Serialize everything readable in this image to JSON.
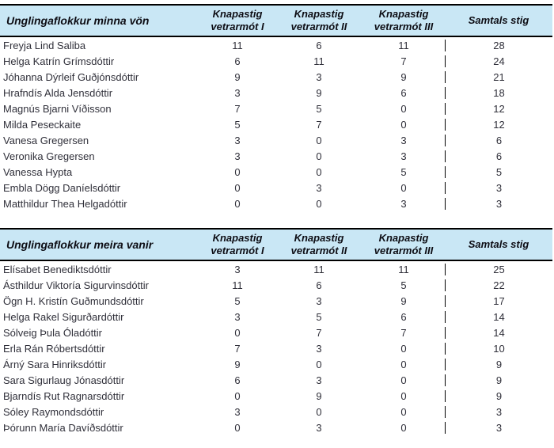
{
  "colors": {
    "header_bg": "#c9e7f5",
    "header_text": "#0d0d14",
    "body_text": "#30303a",
    "border": "#000000"
  },
  "tables": [
    {
      "title": "Unglingaflokkur minna vön",
      "columns": [
        {
          "line1": "Knapastig",
          "line2": "vetrarmót I"
        },
        {
          "line1": "Knapastig",
          "line2": "vetrarmót II"
        },
        {
          "line1": "Knapastig",
          "line2": "vetrarmót III"
        },
        {
          "line1": "Samtals stig",
          "line2": ""
        }
      ],
      "rows": [
        {
          "name": "Freyja Lind Saliba",
          "scores": [
            11,
            6,
            11
          ],
          "total": 28
        },
        {
          "name": "Helga Katrín Grímsdóttir",
          "scores": [
            6,
            11,
            7
          ],
          "total": 24
        },
        {
          "name": "Jóhanna Dýrleif Guðjónsdóttir",
          "scores": [
            9,
            3,
            9
          ],
          "total": 21
        },
        {
          "name": "Hrafndís Alda Jensdóttir",
          "scores": [
            3,
            9,
            6
          ],
          "total": 18
        },
        {
          "name": "Magnús Bjarni Víðisson",
          "scores": [
            7,
            5,
            0
          ],
          "total": 12
        },
        {
          "name": "Milda Peseckaite",
          "scores": [
            5,
            7,
            0
          ],
          "total": 12
        },
        {
          "name": "Vanesa Gregersen",
          "scores": [
            3,
            0,
            3
          ],
          "total": 6
        },
        {
          "name": "Veronika Gregersen",
          "scores": [
            3,
            0,
            3
          ],
          "total": 6
        },
        {
          "name": "Vanessa Hypta",
          "scores": [
            0,
            0,
            5
          ],
          "total": 5
        },
        {
          "name": "Embla Dögg Daníelsdóttir",
          "scores": [
            0,
            3,
            0
          ],
          "total": 3
        },
        {
          "name": "Matthildur Thea Helgadóttir",
          "scores": [
            0,
            0,
            3
          ],
          "total": 3
        }
      ]
    },
    {
      "title": "Unglingaflokkur meira vanir",
      "columns": [
        {
          "line1": "Knapastig",
          "line2": "vetrarmót I"
        },
        {
          "line1": "Knapastig",
          "line2": "vetrarmót II"
        },
        {
          "line1": "Knapastig",
          "line2": "vetrarmót III"
        },
        {
          "line1": "Samtals stig",
          "line2": ""
        }
      ],
      "rows": [
        {
          "name": "Elísabet Benediktsdóttir",
          "scores": [
            3,
            11,
            11
          ],
          "total": 25
        },
        {
          "name": "Ásthildur Viktoría Sigurvinsdóttir",
          "scores": [
            11,
            6,
            5
          ],
          "total": 22
        },
        {
          "name": "Ögn H. Kristín Guðmundsdóttir",
          "scores": [
            5,
            3,
            9
          ],
          "total": 17
        },
        {
          "name": "Helga Rakel Sigurðardóttir",
          "scores": [
            3,
            5,
            6
          ],
          "total": 14
        },
        {
          "name": "Sólveig Þula Óladóttir",
          "scores": [
            0,
            7,
            7
          ],
          "total": 14
        },
        {
          "name": "Erla Rán Róbertsdóttir",
          "scores": [
            7,
            3,
            0
          ],
          "total": 10
        },
        {
          "name": "Árný Sara Hinriksdóttir",
          "scores": [
            9,
            0,
            0
          ],
          "total": 9
        },
        {
          "name": "Sara Sigurlaug Jónasdóttir",
          "scores": [
            6,
            3,
            0
          ],
          "total": 9
        },
        {
          "name": "Bjarndís Rut Ragnarsdóttir",
          "scores": [
            0,
            9,
            0
          ],
          "total": 9
        },
        {
          "name": "Sóley Raymondsdóttir",
          "scores": [
            3,
            0,
            0
          ],
          "total": 3
        },
        {
          "name": "Þórunn María Davíðsdóttir",
          "scores": [
            0,
            3,
            0
          ],
          "total": 3
        }
      ]
    }
  ]
}
